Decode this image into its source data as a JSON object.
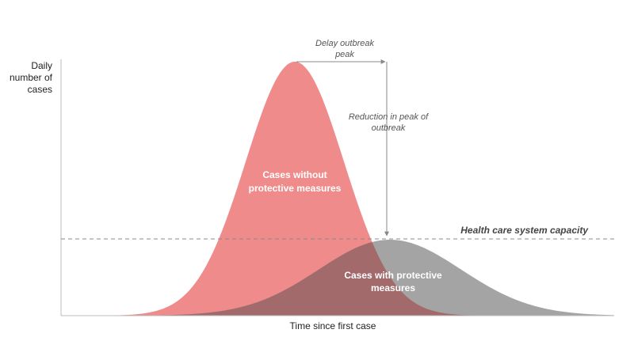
{
  "axes": {
    "y_label": [
      "Daily",
      "number of",
      "cases"
    ],
    "x_label": "Time since first case"
  },
  "annotations": {
    "delay": [
      "Delay outbreak",
      "peak"
    ],
    "reduction": [
      "Reduction in peak of",
      "outbreak"
    ],
    "capacity": "Health care system capacity"
  },
  "curves": {
    "without": [
      "Cases without",
      "protective measures"
    ],
    "with": [
      "Cases with protective",
      "measures"
    ]
  }
}
